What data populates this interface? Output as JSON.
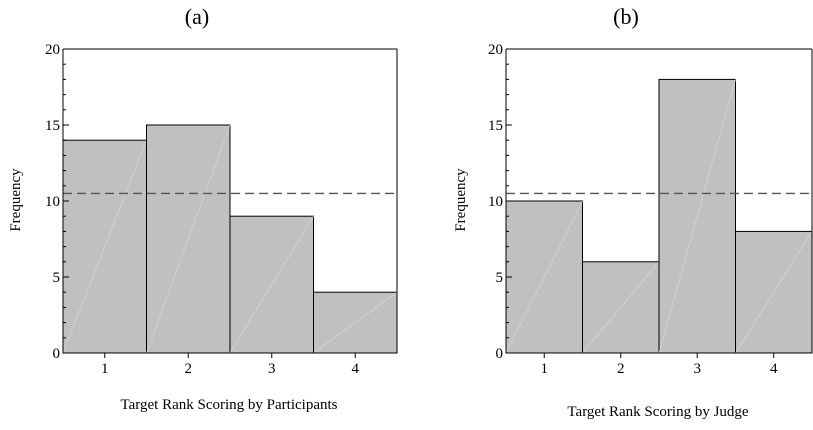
{
  "figure": {
    "background": "#ffffff",
    "bar_fill": "#c0c0c0",
    "bar_stroke": "#000000",
    "axis_color": "#000000",
    "reference_line_color": "#555555"
  },
  "chart_data": [
    {
      "type": "bar",
      "panel_label": "(a)",
      "title": "",
      "xlabel": "Target Rank Scoring by Participants",
      "ylabel": "Frequency",
      "categories": [
        "1",
        "2",
        "3",
        "4"
      ],
      "values": [
        14,
        15,
        9,
        4
      ],
      "ylim": [
        0,
        20
      ],
      "yticks": [
        "0",
        "5",
        "10",
        "15",
        "20"
      ],
      "reference_line": {
        "y": 10.5,
        "style": "dashed"
      },
      "grid": false
    },
    {
      "type": "bar",
      "panel_label": "(b)",
      "title": "",
      "xlabel": "Target Rank Scoring by Judge",
      "ylabel": "Frequency",
      "categories": [
        "1",
        "2",
        "3",
        "4"
      ],
      "values": [
        10,
        6,
        18,
        8
      ],
      "ylim": [
        0,
        20
      ],
      "yticks": [
        "0",
        "5",
        "10",
        "15",
        "20"
      ],
      "reference_line": {
        "y": 10.5,
        "style": "dashed"
      },
      "grid": false
    }
  ]
}
